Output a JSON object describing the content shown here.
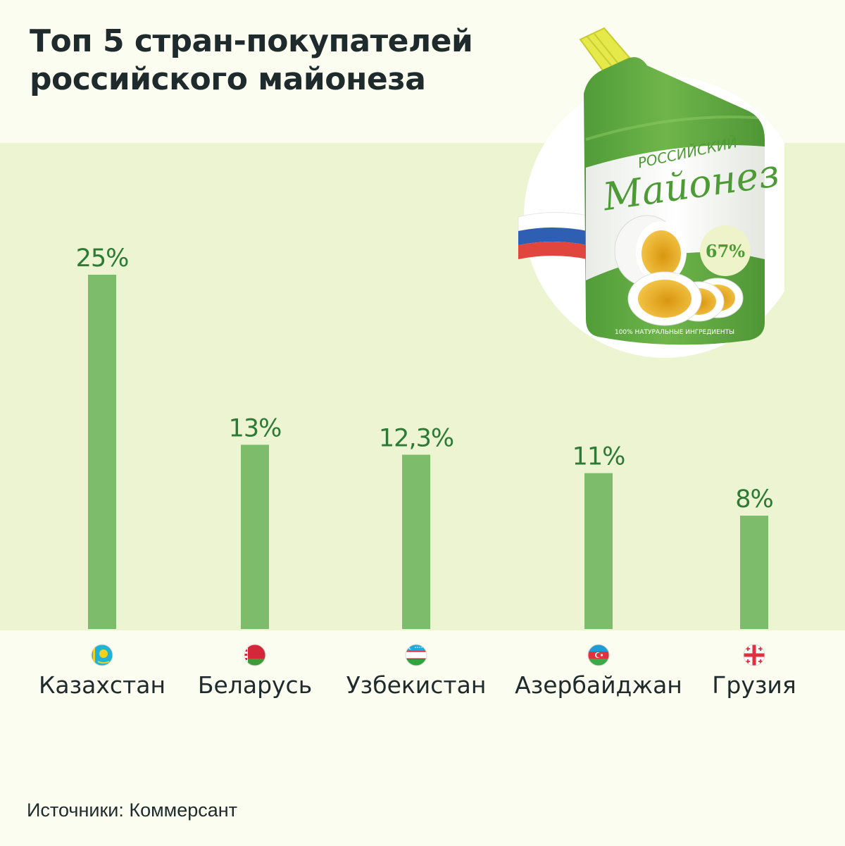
{
  "title": {
    "line1": "Топ 5 стран-покупателей",
    "line2": "российского майонеза"
  },
  "chart_data": {
    "type": "bar",
    "title": "Топ 5 стран-покупателей российского майонеза",
    "categories": [
      "Казахстан",
      "Беларусь",
      "Узбекистан",
      "Азербайджан",
      "Грузия"
    ],
    "values": [
      25,
      13,
      12.3,
      11,
      8
    ],
    "value_labels": [
      "25%",
      "13%",
      "12,3%",
      "11%",
      "8%"
    ],
    "flags": [
      "kazakhstan-flag",
      "belarus-flag",
      "uzbekistan-flag",
      "azerbaijan-flag",
      "georgia-flag"
    ],
    "unit": "%",
    "ylim": [
      0,
      25
    ],
    "grid": false,
    "bar_color": "#7cbc6a",
    "label_color": "#2c7a35"
  },
  "illustration": {
    "brand_small": "РОССИЙСКИЙ",
    "brand_large": "Майонез",
    "fat_badge": "67%",
    "tagline": "100% НАТУРАЛЬНЫЕ ИНГРЕДИЕНТЫ"
  },
  "source": "Источники: Коммерсант",
  "colors": {
    "background": "#fafdef",
    "band": "#ecf4d1",
    "bar": "#7cbc6a",
    "value_text": "#2c7a35",
    "title_text": "#1f2a2c"
  }
}
